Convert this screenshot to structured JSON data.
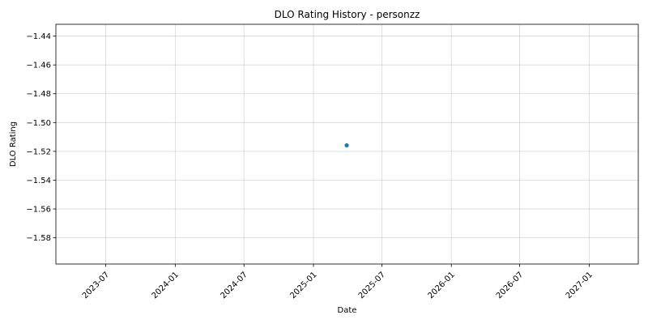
{
  "chart_data": {
    "type": "scatter",
    "title": "DLO Rating History - personzz",
    "xlabel": "Date",
    "ylabel": "DLO Rating",
    "x_type": "date",
    "xlim": [
      "2023-02-19",
      "2027-05-11"
    ],
    "ylim": [
      -1.5982,
      -1.4318
    ],
    "xticks": [
      "2023-07",
      "2024-01",
      "2024-07",
      "2025-01",
      "2025-07",
      "2026-01",
      "2026-07",
      "2027-01"
    ],
    "yticks": [
      -1.44,
      -1.46,
      -1.48,
      -1.5,
      -1.52,
      -1.54,
      -1.56,
      -1.58
    ],
    "ytick_labels": [
      "−1.44",
      "−1.46",
      "−1.48",
      "−1.50",
      "−1.52",
      "−1.54",
      "−1.56",
      "−1.58"
    ],
    "grid": true,
    "series": [
      {
        "color": "#1f77b4",
        "points": [
          {
            "x": "2025-03-30",
            "y": -1.5158
          }
        ]
      }
    ]
  }
}
